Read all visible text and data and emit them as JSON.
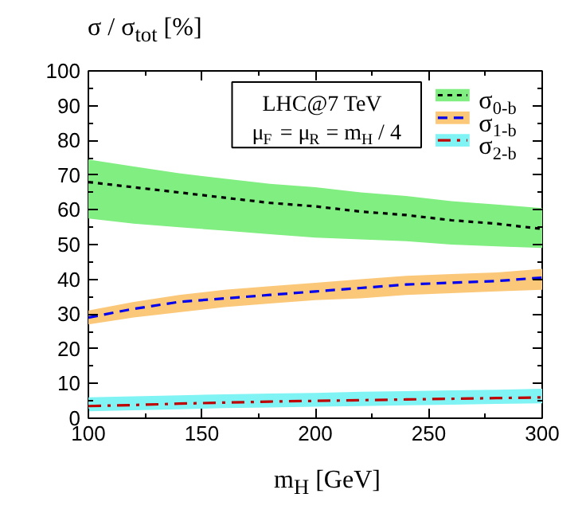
{
  "chart_data": {
    "type": "line",
    "ylabel": "σ / σ$_{tot}$ [%]",
    "xlabel": "m$_{H}$ [GeV]",
    "x": [
      100,
      120,
      140,
      160,
      180,
      200,
      220,
      240,
      260,
      280,
      300
    ],
    "xlim": [
      100,
      300
    ],
    "xticks": [
      100,
      150,
      200,
      250,
      300
    ],
    "ylim": [
      0,
      100
    ],
    "yticks": [
      0,
      10,
      20,
      30,
      40,
      50,
      60,
      70,
      80,
      90,
      100
    ],
    "grid": false,
    "legend": "top right",
    "marker": "none",
    "annotations": [
      "LHC@7 TeV",
      "μ$_{F}$ = μ$_{R}$ = m$_{H}$ / 4"
    ],
    "series": [
      {
        "name": "σ$_{0-b}$",
        "color": "#000000",
        "line_style": "dotted",
        "values": [
          68,
          66.5,
          65,
          63.5,
          62,
          61,
          59.5,
          58.5,
          57,
          56,
          54.5
        ],
        "lower": [
          57.5,
          56,
          55,
          54,
          53,
          52,
          51.5,
          51,
          50,
          49.5,
          49
        ],
        "upper": [
          74.5,
          72.5,
          70.5,
          69,
          67.5,
          66.5,
          65,
          64,
          62.5,
          61.5,
          60.5
        ]
      },
      {
        "name": "σ$_{1-b}$",
        "color": "#0000ee",
        "line_style": "dashed",
        "values": [
          29,
          31.5,
          33.5,
          34.5,
          35.5,
          36.5,
          37.5,
          38.5,
          39,
          39.5,
          40.5
        ],
        "lower": [
          27,
          29,
          30.5,
          32,
          33,
          34,
          34.5,
          35.5,
          36,
          36.5,
          37
        ],
        "upper": [
          31,
          33.5,
          35.5,
          37,
          38,
          39,
          40,
          41,
          41.5,
          42,
          43
        ]
      },
      {
        "name": "σ$_{2-b}$",
        "color": "#c00000",
        "line_style": "dashdot",
        "values": [
          3.5,
          3.8,
          4.2,
          4.5,
          4.8,
          5,
          5.2,
          5.4,
          5.6,
          5.8,
          6
        ],
        "lower": [
          2,
          2.3,
          2.6,
          2.9,
          3.1,
          3.3,
          3.5,
          3.7,
          3.9,
          4.1,
          4.3
        ],
        "upper": [
          6,
          6.3,
          6.6,
          6.9,
          7.1,
          7.3,
          7.6,
          7.8,
          8,
          8.2,
          8.5
        ]
      }
    ]
  }
}
